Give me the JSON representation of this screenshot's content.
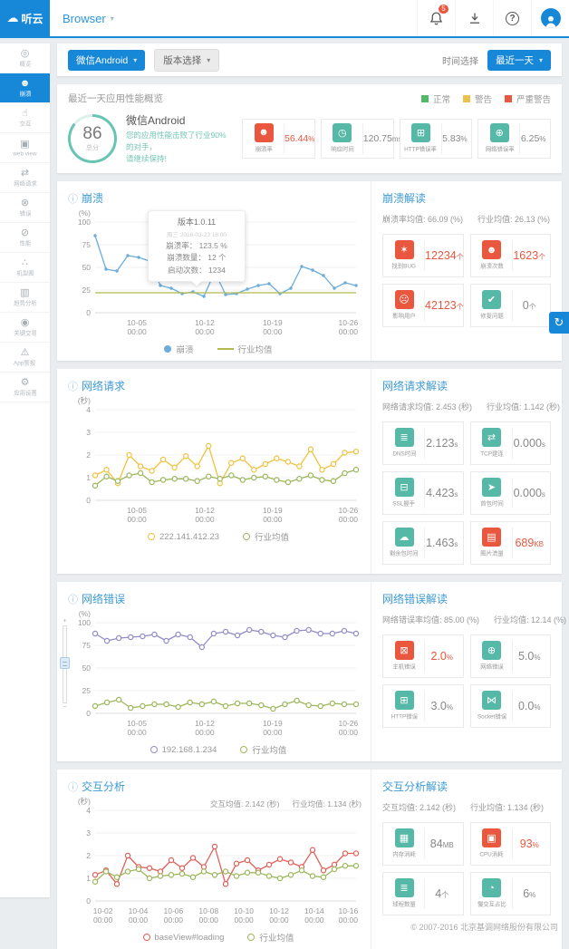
{
  "ui": {
    "caret": "▾",
    "info": "ⓘ",
    "plus": "+",
    "minus": "−",
    "refresh": "↻",
    "help": "?"
  },
  "header": {
    "logo_icon": "☁",
    "logo": "听云",
    "product": "Browser",
    "notification_count": "5"
  },
  "sidebar": {
    "items": [
      {
        "icon": "◎",
        "label": "概览",
        "active": false
      },
      {
        "icon": "☻",
        "label": "崩溃",
        "active": true
      },
      {
        "icon": "☝",
        "label": "交互",
        "active": false
      },
      {
        "icon": "▣",
        "label": "web view",
        "active": false
      },
      {
        "icon": "⇄",
        "label": "网络请求",
        "active": false
      },
      {
        "icon": "⊗",
        "label": "错误",
        "active": false
      },
      {
        "icon": "⊘",
        "label": "性能",
        "active": false
      },
      {
        "icon": "∴",
        "label": "机型图",
        "active": false
      },
      {
        "icon": "▥",
        "label": "趋势分析",
        "active": false
      },
      {
        "icon": "◉",
        "label": "关键交易",
        "active": false
      },
      {
        "icon": "⚠",
        "label": "App警报",
        "active": false
      },
      {
        "icon": "⚙",
        "label": "应用设置",
        "active": false
      }
    ]
  },
  "filters": {
    "app": "微信Android",
    "version": "版本选择",
    "time_label": "时间选择",
    "time": "最近一天"
  },
  "overview": {
    "title": "最近一天应用性能概览",
    "legend": [
      {
        "label": "正常",
        "color": "#52b966",
        "type": "sq"
      },
      {
        "label": "警告",
        "color": "#edc24a",
        "type": "sq"
      },
      {
        "label": "严重警告",
        "color": "#e9573f",
        "type": "sq"
      }
    ],
    "score": "86",
    "score_unit": "总分",
    "app_name": "微信Android",
    "desc1": "您的应用性能击败了行业90%的对手，",
    "desc2": "请继续保持!",
    "metrics": [
      {
        "icon": "☻",
        "label": "崩溃率",
        "value": "56.44",
        "unit": "%",
        "alert": true
      },
      {
        "icon": "◷",
        "label": "响应时间",
        "value": "120.75",
        "unit": "ms",
        "alert": false
      },
      {
        "icon": "⊞",
        "label": "HTTP错误率",
        "value": "5.83",
        "unit": "%",
        "alert": false
      },
      {
        "icon": "⊕",
        "label": "网络错误率",
        "value": "6.25",
        "unit": "%",
        "alert": false
      }
    ]
  },
  "crash": {
    "title": "崩溃",
    "tooltip": {
      "title": "版本1.0.11",
      "time": "周三 2016-03-23 16:00",
      "rows": [
        "崩溃率： 123.5 %",
        "崩溃数量： 12 个",
        "启动次数： 1234"
      ]
    },
    "legend": [
      {
        "label": "崩溃",
        "color": "#6caddc",
        "type": "dot"
      },
      {
        "label": "行业均值",
        "color": "#b2b94e",
        "type": "line"
      }
    ],
    "panel": {
      "title": "崩溃解读",
      "stat1": "崩溃率均值: 66.09 (%)",
      "stat2": "行业均值: 26.13 (%)",
      "cards": [
        {
          "icon": "✶",
          "label": "找到BUG",
          "value": "12234",
          "unit": "个",
          "alert": true
        },
        {
          "icon": "☻",
          "label": "崩溃次数",
          "value": "1623",
          "unit": "个",
          "alert": true
        },
        {
          "icon": "☹",
          "label": "影响用户",
          "value": "42123",
          "unit": "个",
          "alert": true
        },
        {
          "icon": "✔",
          "label": "修复问题",
          "value": "0",
          "unit": "个",
          "alert": false
        }
      ]
    }
  },
  "network_request": {
    "title": "网络请求",
    "legend": [
      {
        "label": "222.141.412.23",
        "color": "#f0c23e",
        "type": "open"
      },
      {
        "label": "行业均值",
        "color": "#9cb75b",
        "type": "open"
      }
    ],
    "panel": {
      "title": "网络请求解读",
      "stat1": "网络请求均值: 2.453 (秒)",
      "stat2": "行业均值: 1.142 (秒)",
      "cards": [
        {
          "icon": "≣",
          "label": "DNS时间",
          "value": "2.123",
          "unit": "s",
          "alert": false
        },
        {
          "icon": "⇄",
          "label": "TCP建连",
          "value": "0.000",
          "unit": "s",
          "alert": false
        },
        {
          "icon": "⊟",
          "label": "SSL握手",
          "value": "4.423",
          "unit": "s",
          "alert": false
        },
        {
          "icon": "➤",
          "label": "首包时间",
          "value": "0.000",
          "unit": "s",
          "alert": false
        },
        {
          "icon": "☁",
          "label": "剩余包时间",
          "value": "1.463",
          "unit": "s",
          "alert": false
        },
        {
          "icon": "▤",
          "label": "图片流量",
          "value": "689",
          "unit": "KB",
          "alert": true
        }
      ]
    }
  },
  "network_error": {
    "title": "网络错误",
    "legend": [
      {
        "label": "192.168.1.234",
        "color": "#918bc9",
        "type": "open"
      },
      {
        "label": "行业均值",
        "color": "#9cb75b",
        "type": "open"
      }
    ],
    "panel": {
      "title": "网络错误解读",
      "stat1": "网络错误率均值: 85.00 (%)",
      "stat2": "行业均值: 12.14 (%)",
      "cards": [
        {
          "icon": "⊠",
          "label": "主机错误",
          "value": "2.0",
          "unit": "%",
          "alert": true
        },
        {
          "icon": "⊕",
          "label": "网络错误",
          "value": "5.0",
          "unit": "%",
          "alert": false
        },
        {
          "icon": "⊞",
          "label": "HTTP错误",
          "value": "3.0",
          "unit": "%",
          "alert": false
        },
        {
          "icon": "⋈",
          "label": "Socket错误",
          "value": "0.0",
          "unit": "%",
          "alert": false
        }
      ]
    }
  },
  "interaction": {
    "title": "交互分析",
    "annotation": {
      "a": "交互均值: 2.142 (秒)",
      "b": "行业均值: 1.134 (秒)"
    },
    "legend": [
      {
        "label": "baseView#loading",
        "color": "#e0605a",
        "type": "open"
      },
      {
        "label": "行业均值",
        "color": "#9cb75b",
        "type": "open"
      }
    ],
    "panel": {
      "title": "交互分析解读",
      "stat1": "交互均值: 2.142 (秒)",
      "stat2": "行业均值: 1.134 (秒)",
      "cards": [
        {
          "icon": "▦",
          "label": "内存消耗",
          "value": "84",
          "unit": "MB",
          "alert": false
        },
        {
          "icon": "▣",
          "label": "CPU消耗",
          "value": "93",
          "unit": "%",
          "alert": true
        },
        {
          "icon": "≣",
          "label": "线程数量",
          "value": "4",
          "unit": "个",
          "alert": false
        },
        {
          "icon": "◔",
          "label": "慢交互占比",
          "value": "6",
          "unit": "%",
          "alert": false
        }
      ]
    }
  },
  "footer": {
    "copyright": "© 2007-2016  北京基调网络股份有限公司"
  },
  "chart_data": [
    {
      "type": "line",
      "title": "崩溃",
      "xlabel": "",
      "ylabel": "(%)",
      "ylim": [
        0,
        100
      ],
      "yticks": [
        0,
        25,
        50,
        75,
        100
      ],
      "grid": true,
      "legend_position": "bottom",
      "xticks": [
        {
          "label": "10-05",
          "sub": "00:00",
          "pos": 0.16
        },
        {
          "label": "10-12",
          "sub": "00:00",
          "pos": 0.42
        },
        {
          "label": "10-19",
          "sub": "00:00",
          "pos": 0.68
        },
        {
          "label": "10-26",
          "sub": "00:00",
          "pos": 0.97
        }
      ],
      "series": [
        {
          "name": "崩溃",
          "color": "#6caddc",
          "marker": "dot",
          "values": [
            85,
            48,
            46,
            63,
            61,
            57,
            30,
            27,
            21,
            23,
            18,
            45,
            20,
            21,
            26,
            30,
            32,
            21,
            27,
            51,
            47,
            41,
            27,
            33,
            30
          ]
        },
        {
          "name": "行业均值",
          "color": "#b2b94e",
          "marker": "none",
          "values": [
            22,
            22
          ]
        }
      ]
    },
    {
      "type": "line",
      "title": "网络请求",
      "xlabel": "",
      "ylabel": "(秒)",
      "ylim": [
        0,
        4
      ],
      "yticks": [
        0,
        1,
        2,
        3,
        4
      ],
      "grid": true,
      "legend_position": "bottom",
      "xticks": [
        {
          "label": "10-05",
          "sub": "00:00",
          "pos": 0.16
        },
        {
          "label": "10-12",
          "sub": "00:00",
          "pos": 0.42
        },
        {
          "label": "10-19",
          "sub": "00:00",
          "pos": 0.68
        },
        {
          "label": "10-26",
          "sub": "00:00",
          "pos": 0.97
        }
      ],
      "series": [
        {
          "name": "222.141.412.23",
          "color": "#f0c23e",
          "marker": "open",
          "values": [
            1.1,
            1.35,
            0.75,
            2.0,
            1.5,
            1.3,
            1.8,
            1.45,
            1.95,
            1.5,
            2.4,
            0.75,
            1.65,
            1.85,
            1.35,
            1.6,
            1.85,
            1.7,
            1.5,
            2.25,
            1.35,
            1.6,
            2.1,
            2.15
          ]
        },
        {
          "name": "行业均值",
          "color": "#9cb75b",
          "marker": "open",
          "values": [
            0.65,
            1.05,
            0.85,
            1.1,
            1.2,
            0.8,
            0.9,
            0.95,
            0.95,
            0.85,
            1.05,
            0.95,
            1.1,
            0.9,
            1.0,
            1.05,
            0.9,
            0.8,
            0.95,
            1.1,
            0.9,
            0.85,
            1.2,
            1.35
          ]
        }
      ]
    },
    {
      "type": "line",
      "title": "网络错误",
      "xlabel": "",
      "ylabel": "(%)",
      "ylim": [
        0,
        100
      ],
      "yticks": [
        0,
        25,
        50,
        75,
        100
      ],
      "grid": true,
      "legend_position": "bottom",
      "xticks": [
        {
          "label": "10-05",
          "sub": "00:00",
          "pos": 0.16
        },
        {
          "label": "10-12",
          "sub": "00:00",
          "pos": 0.42
        },
        {
          "label": "10-19",
          "sub": "00:00",
          "pos": 0.68
        },
        {
          "label": "10-26",
          "sub": "00:00",
          "pos": 0.97
        }
      ],
      "series": [
        {
          "name": "192.168.1.234",
          "color": "#918bc9",
          "marker": "open",
          "values": [
            88,
            80,
            83,
            84,
            85,
            87,
            80,
            87,
            84,
            73,
            88,
            90,
            86,
            92,
            90,
            86,
            84,
            91,
            92,
            88,
            88,
            91,
            88
          ]
        },
        {
          "name": "行业均值",
          "color": "#9cb75b",
          "marker": "open",
          "values": [
            8,
            12,
            15,
            6,
            8,
            10,
            10,
            7,
            12,
            10,
            13,
            8,
            11,
            11,
            9,
            5,
            10,
            14,
            9,
            8,
            11,
            10,
            10
          ]
        }
      ]
    },
    {
      "type": "line",
      "title": "交互分析",
      "xlabel": "",
      "ylabel": "(秒)",
      "ylim": [
        0,
        4
      ],
      "yticks": [
        0,
        1,
        2,
        3,
        4
      ],
      "grid": true,
      "legend_position": "bottom",
      "xticks": [
        {
          "label": "10-02",
          "sub": "00:00",
          "pos": 0.03
        },
        {
          "label": "10-04",
          "sub": "00:00",
          "pos": 0.165
        },
        {
          "label": "10-06",
          "sub": "00:00",
          "pos": 0.3
        },
        {
          "label": "10-08",
          "sub": "00:00",
          "pos": 0.435
        },
        {
          "label": "10-10",
          "sub": "00:00",
          "pos": 0.57
        },
        {
          "label": "10-12",
          "sub": "00:00",
          "pos": 0.705
        },
        {
          "label": "10-14",
          "sub": "00:00",
          "pos": 0.84
        },
        {
          "label": "10-16",
          "sub": "00:00",
          "pos": 0.97
        }
      ],
      "series": [
        {
          "name": "baseView#loading",
          "color": "#e0605a",
          "marker": "open",
          "values": [
            1.15,
            1.35,
            0.75,
            2.0,
            1.5,
            1.45,
            1.3,
            1.8,
            1.45,
            1.9,
            1.5,
            2.4,
            0.75,
            1.65,
            1.8,
            1.35,
            1.6,
            1.85,
            1.7,
            1.5,
            2.25,
            1.35,
            1.6,
            2.1,
            2.1
          ]
        },
        {
          "name": "行业均值",
          "color": "#9cb75b",
          "marker": "open",
          "values": [
            0.85,
            1.3,
            1.05,
            1.3,
            1.4,
            1.0,
            1.1,
            1.15,
            1.2,
            1.05,
            1.3,
            1.15,
            1.3,
            1.1,
            1.25,
            1.25,
            1.1,
            1.0,
            1.15,
            1.35,
            1.1,
            1.05,
            1.4,
            1.55,
            1.55
          ]
        }
      ]
    }
  ]
}
